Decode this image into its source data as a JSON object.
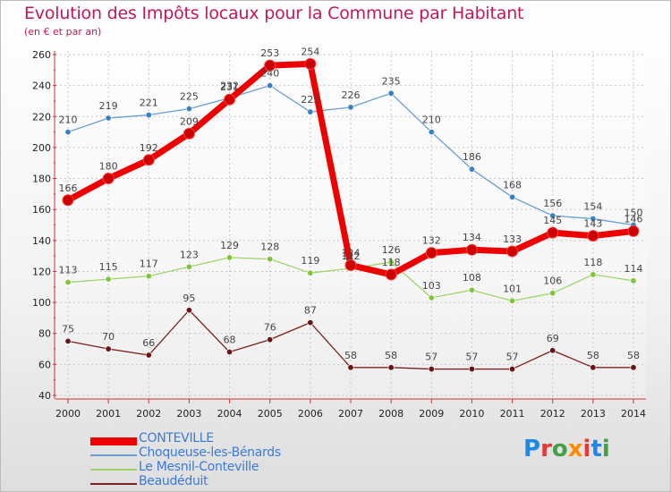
{
  "title": "Evolution des Impôts locaux pour la Commune par Habitant",
  "subtitle": "(en € et par an)",
  "logo": {
    "text": "Proxiti",
    "letter_colors": [
      "#1e88e5",
      "#e53935",
      "#43a047",
      "#fb8c00",
      "#e53935",
      "#1e88e5",
      "#43a047"
    ]
  },
  "chart_data": {
    "type": "line",
    "x": [
      "2000",
      "2001",
      "2002",
      "2003",
      "2004",
      "2005",
      "2006",
      "2007",
      "2008",
      "2009",
      "2010",
      "2011",
      "2012",
      "2013",
      "2014"
    ],
    "ylim": [
      40,
      260
    ],
    "yticks": [
      "40",
      "60",
      "80",
      "100",
      "120",
      "140",
      "160",
      "180",
      "200",
      "220",
      "240",
      "260"
    ],
    "grid": true,
    "legend_position": "bottom-left",
    "series": [
      {
        "name": "CONTEVILLE",
        "color": "#ee0000",
        "marker": "#cc0000",
        "values": [
          166,
          180,
          192,
          209,
          231,
          253,
          254,
          124,
          118,
          132,
          134,
          133,
          145,
          143,
          146
        ],
        "labels": [
          "166",
          "180",
          "192",
          "209",
          "231",
          "253",
          "254",
          "124",
          "118",
          "132",
          "134",
          "133",
          "145",
          "143",
          "146"
        ]
      },
      {
        "name": "Choqueuse-les-Bénards",
        "color": "#6a9fd4",
        "marker": "#3b7fc4",
        "values": [
          210,
          219,
          221,
          225,
          232,
          240,
          223,
          226,
          235,
          210,
          186,
          168,
          156,
          154,
          150
        ],
        "labels": [
          "210",
          "219",
          "221",
          "225",
          "232",
          "240",
          "223",
          "226",
          "235",
          "210",
          "186",
          "168",
          "156",
          "154",
          "150"
        ]
      },
      {
        "name": "Le Mesnil-Conteville",
        "color": "#9fd46a",
        "marker": "#7fc43b",
        "values": [
          113,
          115,
          117,
          123,
          129,
          128,
          119,
          122,
          126,
          103,
          108,
          101,
          106,
          118,
          114
        ],
        "labels": [
          "113",
          "115",
          "117",
          "123",
          "129",
          "128",
          "119",
          "122",
          "126",
          "103",
          "108",
          "101",
          "106",
          "118",
          "114"
        ]
      },
      {
        "name": "Beaudéduit",
        "color": "#7a2020",
        "marker": "#6a1515",
        "values": [
          75,
          70,
          66,
          95,
          68,
          76,
          87,
          58,
          58,
          57,
          57,
          57,
          69,
          58,
          58
        ],
        "labels": [
          "75",
          "70",
          "66",
          "95",
          "68",
          "76",
          "87",
          "58",
          "58",
          "57",
          "57",
          "57",
          "69",
          "58",
          "58"
        ]
      }
    ]
  }
}
